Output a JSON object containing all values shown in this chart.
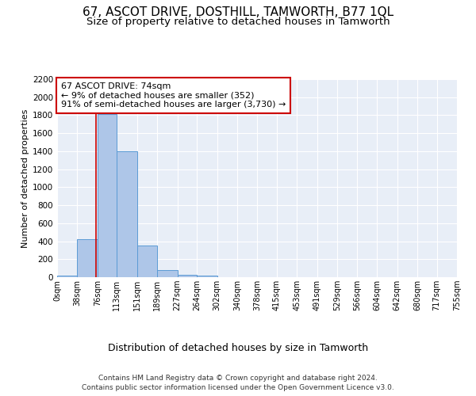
{
  "title": "67, ASCOT DRIVE, DOSTHILL, TAMWORTH, B77 1QL",
  "subtitle": "Size of property relative to detached houses in Tamworth",
  "xlabel": "Distribution of detached houses by size in Tamworth",
  "ylabel": "Number of detached properties",
  "footer_line1": "Contains HM Land Registry data © Crown copyright and database right 2024.",
  "footer_line2": "Contains public sector information licensed under the Open Government Licence v3.0.",
  "annotation_title": "67 ASCOT DRIVE: 74sqm",
  "annotation_line2": "← 9% of detached houses are smaller (352)",
  "annotation_line3": "91% of semi-detached houses are larger (3,730) →",
  "property_size_sqm": 74,
  "bar_edges": [
    0,
    38,
    76,
    113,
    151,
    189,
    227,
    264,
    302,
    340,
    378,
    415,
    453,
    491,
    529,
    566,
    604,
    642,
    680,
    717,
    755
  ],
  "bar_heights": [
    15,
    420,
    1810,
    1400,
    350,
    80,
    30,
    15,
    0,
    0,
    0,
    0,
    0,
    0,
    0,
    0,
    0,
    0,
    0,
    0
  ],
  "bar_color": "#aec6e8",
  "bar_edge_color": "#5b9bd5",
  "vline_color": "#cc0000",
  "vline_x": 74,
  "annotation_box_color": "#cc0000",
  "annotation_text_color": "#000000",
  "background_color": "#e8eef7",
  "ylim": [
    0,
    2200
  ],
  "yticks": [
    0,
    200,
    400,
    600,
    800,
    1000,
    1200,
    1400,
    1600,
    1800,
    2000,
    2200
  ],
  "title_fontsize": 11,
  "subtitle_fontsize": 9.5,
  "xlabel_fontsize": 9,
  "ylabel_fontsize": 8,
  "tick_fontsize": 7.5,
  "annotation_fontsize": 8,
  "footer_fontsize": 6.5
}
